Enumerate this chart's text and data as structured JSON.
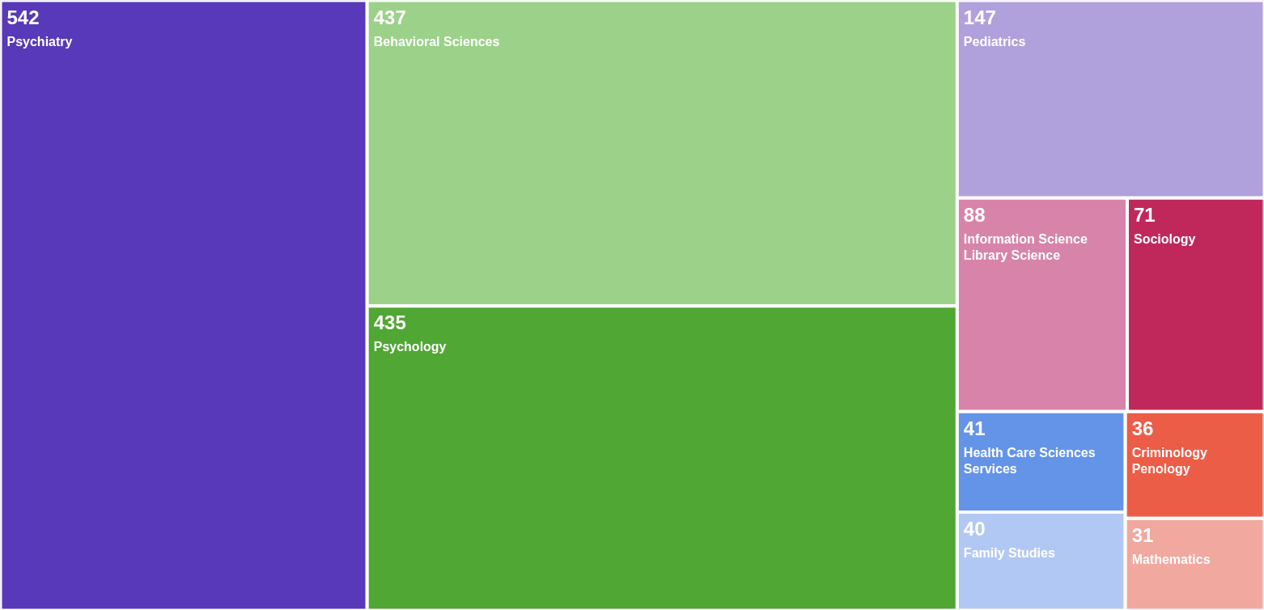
{
  "chart_data": {
    "type": "other",
    "categories": [
      "Psychiatry",
      "Behavioral Sciences",
      "Psychology",
      "Pediatrics",
      "Information Science Library Science",
      "Sociology",
      "Health Care Sciences Services",
      "Family Studies",
      "Criminology Penology",
      "Mathematics"
    ],
    "values": [
      542,
      437,
      435,
      147,
      88,
      71,
      41,
      40,
      36,
      31
    ],
    "colors": [
      "#5739b9",
      "#9cd18a",
      "#50a734",
      "#b0a1dc",
      "#d884aa",
      "#c0285c",
      "#6494e8",
      "#b2c8f4",
      "#ec5d48",
      "#f1a89e"
    ],
    "data_labels": true
  }
}
